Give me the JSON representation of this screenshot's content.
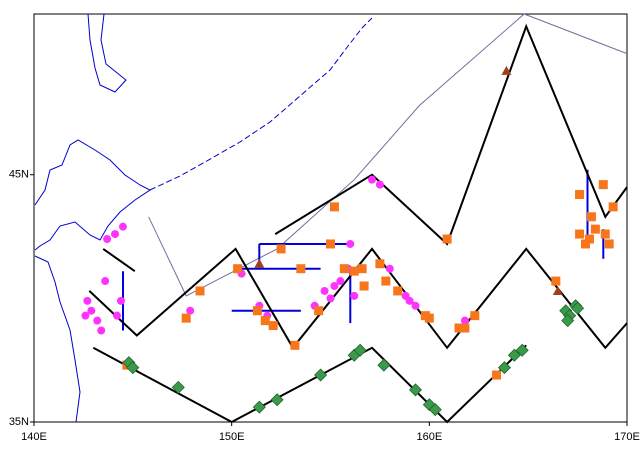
{
  "chart_data": {
    "type": "scatter",
    "xlim": [
      140,
      170
    ],
    "ylim": [
      35,
      51.5
    ],
    "xticks": [
      {
        "value": 140,
        "label": "140E"
      },
      {
        "value": 150,
        "label": "150E"
      },
      {
        "value": 160,
        "label": "160E"
      },
      {
        "value": 170,
        "label": "170E"
      }
    ],
    "yticks": [
      {
        "value": 35,
        "label": "35N"
      },
      {
        "value": 45,
        "label": "45N"
      }
    ],
    "series": [
      {
        "type": "line",
        "color": "#7070a0",
        "width": 1,
        "x": [
          145.8,
          147.7,
          152.3,
          156.2,
          159.5,
          164.8,
          170.0
        ],
        "y": [
          43.3,
          40.1,
          42.0,
          44.8,
          47.8,
          51.5,
          49.9
        ]
      },
      {
        "type": "line",
        "color": "#0000dd",
        "width": 2,
        "x": [
          151.4,
          156.0,
          null,
          151.4,
          151.4,
          null,
          150.4,
          154.5,
          null,
          150.0,
          153.5,
          null,
          156.0,
          156.0,
          null,
          144.5,
          144.5,
          null,
          168.0,
          168.0,
          null,
          168.8,
          168.8
        ],
        "y": [
          42.2,
          42.2,
          null,
          42.2,
          41.2,
          null,
          41.2,
          41.2,
          null,
          39.5,
          39.5,
          null,
          41.2,
          39.0,
          null,
          41.1,
          38.7,
          null,
          45.2,
          42.2,
          null,
          42.8,
          41.6
        ]
      },
      {
        "type": "line",
        "color": "#000000",
        "width": 2,
        "x": [
          152.2,
          157.1,
          160.9,
          164.9,
          168.9,
          170.0
        ],
        "y": [
          42.6,
          45.0,
          42.2,
          51.0,
          43.3,
          44.5
        ]
      },
      {
        "type": "line",
        "color": "#000000",
        "width": 2,
        "x": [
          143.5,
          145.1,
          null,
          142.8,
          145.2,
          150.2,
          153.1,
          157.1,
          160.9,
          164.9,
          168.9,
          170.0
        ],
        "y": [
          42.0,
          41.1,
          null,
          40.3,
          38.5,
          42.0,
          38.0,
          42.0,
          38.0,
          42.0,
          38.0,
          39.0
        ]
      },
      {
        "type": "line",
        "color": "#000000",
        "width": 2,
        "x": [
          143.0,
          150.0,
          157.1,
          160.9,
          164.9
        ],
        "y": [
          38.0,
          35.0,
          38.0,
          35.0,
          38.1
        ]
      },
      {
        "type": "scatter",
        "marker": "circle",
        "color": "#ff33ff",
        "x": [
          142.7,
          142.9,
          142.6,
          143.2,
          143.4,
          144.4,
          144.2,
          144.5,
          144.1,
          143.7,
          147.9,
          151.4,
          151.8,
          154.7,
          155.2,
          155.5,
          156.0,
          155.9,
          156.2,
          157.1,
          157.5,
          158.0,
          158.8,
          159.0,
          159.3,
          161.8,
          143.6,
          150.5,
          155.0,
          154.2
        ],
        "y": [
          39.9,
          39.5,
          39.3,
          39.1,
          38.7,
          39.9,
          39.3,
          42.9,
          42.6,
          42.4,
          39.5,
          39.7,
          39.3,
          40.3,
          40.5,
          40.7,
          42.2,
          41.2,
          40.1,
          44.8,
          44.6,
          41.2,
          40.1,
          39.9,
          39.7,
          39.1,
          40.7,
          41.0,
          40.0,
          39.7
        ]
      },
      {
        "type": "scatter",
        "marker": "square",
        "color": "#f7761c",
        "x": [
          144.7,
          148.4,
          147.7,
          150.3,
          151.3,
          151.7,
          152.1,
          152.5,
          153.2,
          153.5,
          154.4,
          155.2,
          155.0,
          155.7,
          156.2,
          156.6,
          157.5,
          157.8,
          158.4,
          159.8,
          160.0,
          161.5,
          161.8,
          162.3,
          163.4,
          160.9,
          166.4,
          167.6,
          167.9,
          168.1,
          168.4,
          168.9,
          169.1,
          167.6,
          168.2,
          168.8,
          169.3,
          156.7
        ],
        "y": [
          37.3,
          40.3,
          39.2,
          41.2,
          39.5,
          39.1,
          38.9,
          42.0,
          38.1,
          41.2,
          39.5,
          43.7,
          42.2,
          41.2,
          41.1,
          41.2,
          41.4,
          40.7,
          40.3,
          39.3,
          39.2,
          38.8,
          38.8,
          39.3,
          36.9,
          42.4,
          40.7,
          42.6,
          42.2,
          42.4,
          42.8,
          42.6,
          42.2,
          44.2,
          43.3,
          44.6,
          43.7,
          40.5
        ]
      },
      {
        "type": "scatter",
        "marker": "diamond",
        "color": "#3a9a4a",
        "x": [
          144.8,
          145.0,
          147.3,
          151.4,
          152.3,
          154.5,
          156.2,
          156.5,
          157.7,
          159.3,
          160.0,
          160.3,
          163.8,
          164.3,
          164.7,
          166.9,
          167.1,
          167.0,
          167.4,
          167.5
        ],
        "y": [
          37.4,
          37.2,
          36.4,
          35.6,
          35.9,
          36.9,
          37.7,
          37.9,
          37.3,
          36.3,
          35.7,
          35.5,
          37.2,
          37.7,
          37.9,
          39.5,
          39.3,
          39.1,
          39.7,
          39.6
        ]
      },
      {
        "type": "scatter",
        "marker": "triangle",
        "color": "#a0401a",
        "x": [
          163.9,
          151.4,
          166.5
        ],
        "y": [
          49.2,
          41.4,
          40.3
        ]
      }
    ]
  }
}
